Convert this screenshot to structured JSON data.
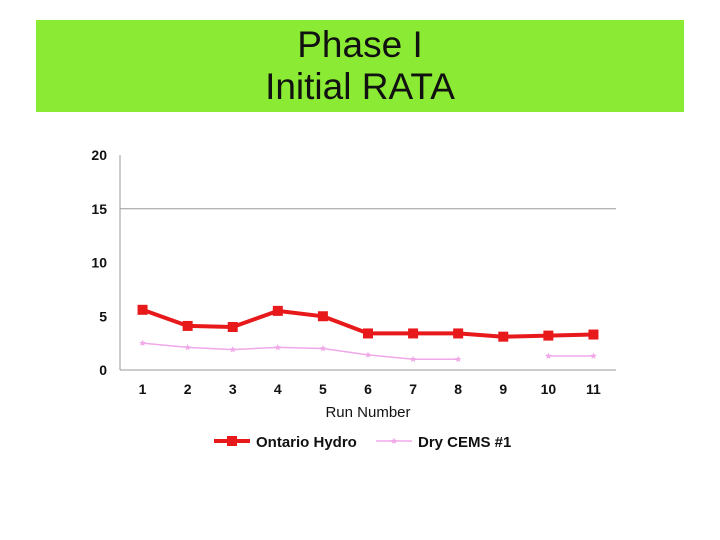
{
  "slide": {
    "title_line1": "Phase I",
    "title_line2": "Initial RATA",
    "banner_color": "#8bea34"
  },
  "chart_data": {
    "type": "line",
    "xlabel": "Run Number",
    "ylabel": "",
    "categories": [
      "1",
      "2",
      "3",
      "4",
      "5",
      "6",
      "7",
      "8",
      "9",
      "10",
      "11"
    ],
    "ylim": [
      0,
      20
    ],
    "yticks": [
      0,
      5,
      10,
      15,
      20
    ],
    "grid": "horizontal at 15",
    "legend_position": "bottom",
    "series": [
      {
        "name": "Ontario Hydro",
        "color": "#e8191b",
        "marker": "square",
        "values": [
          5.6,
          4.1,
          4.0,
          5.5,
          5.0,
          3.4,
          3.4,
          3.4,
          3.1,
          3.2,
          3.3
        ]
      },
      {
        "name": "Dry CEMS #1",
        "color": "#f0a8e8",
        "marker": "star",
        "values": [
          2.5,
          2.1,
          1.9,
          2.1,
          2.0,
          1.4,
          1.0,
          1.0,
          null,
          1.3,
          1.3
        ]
      }
    ]
  }
}
